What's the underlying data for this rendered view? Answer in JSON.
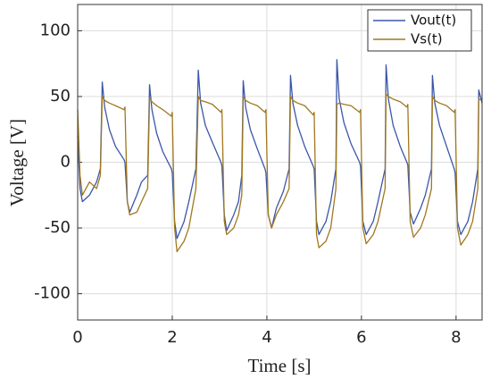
{
  "chart_data": {
    "type": "line",
    "xlabel": "Time [s]",
    "ylabel": "Voltage [V]",
    "x": [
      0,
      0.05,
      0.1,
      0.25,
      0.4,
      0.48,
      0.52,
      0.57,
      0.67,
      0.8,
      0.98,
      1.0,
      1.05,
      1.1,
      1.25,
      1.35,
      1.48,
      1.52,
      1.57,
      1.67,
      1.8,
      1.98,
      2.0,
      2.05,
      2.1,
      2.25,
      2.35,
      2.5,
      2.55,
      2.6,
      2.7,
      2.85,
      3.03,
      3.05,
      3.1,
      3.15,
      3.3,
      3.4,
      3.47,
      3.5,
      3.55,
      3.65,
      3.8,
      3.96,
      3.98,
      4.03,
      4.1,
      4.2,
      4.35,
      4.47,
      4.5,
      4.55,
      4.65,
      4.8,
      4.98,
      5.0,
      5.05,
      5.1,
      5.25,
      5.35,
      5.46,
      5.48,
      5.53,
      5.63,
      5.78,
      5.96,
      5.98,
      6.03,
      6.1,
      6.25,
      6.35,
      6.5,
      6.52,
      6.57,
      6.67,
      6.82,
      6.96,
      6.98,
      7.03,
      7.1,
      7.25,
      7.35,
      7.48,
      7.5,
      7.55,
      7.65,
      7.8,
      7.96,
      7.98,
      8.03,
      8.1,
      8.25,
      8.35,
      8.46,
      8.48,
      8.55
    ],
    "series": [
      {
        "name": "Vout(t)",
        "color": "#3a56a8",
        "values": [
          20,
          -20,
          -30,
          -25,
          -15,
          -5,
          61,
          42,
          25,
          12,
          2,
          0,
          -30,
          -38,
          -25,
          -15,
          -10,
          59,
          40,
          22,
          8,
          -5,
          -8,
          -45,
          -58,
          -45,
          -30,
          -5,
          70,
          45,
          28,
          15,
          0,
          -3,
          -40,
          -52,
          -40,
          -30,
          -10,
          62,
          42,
          25,
          10,
          -5,
          -8,
          -40,
          -50,
          -35,
          -22,
          -5,
          66,
          45,
          28,
          12,
          -3,
          -5,
          -45,
          -55,
          -45,
          -30,
          -5,
          78,
          48,
          30,
          14,
          0,
          -3,
          -45,
          -55,
          -45,
          -30,
          -5,
          74,
          48,
          28,
          12,
          0,
          -2,
          -38,
          -47,
          -35,
          -25,
          -5,
          66,
          45,
          28,
          12,
          -5,
          -8,
          -45,
          -55,
          -45,
          -30,
          -5,
          55,
          45
        ]
      },
      {
        "name": "Vs(t)",
        "color": "#a0781e",
        "values": [
          40,
          -10,
          -25,
          -15,
          -20,
          -10,
          50,
          47,
          45,
          43,
          40,
          42,
          -30,
          -40,
          -38,
          -30,
          -20,
          49,
          46,
          43,
          40,
          35,
          38,
          -50,
          -68,
          -60,
          -50,
          -20,
          50,
          47,
          46,
          44,
          38,
          40,
          -45,
          -55,
          -50,
          -40,
          -25,
          50,
          47,
          45,
          43,
          38,
          40,
          -40,
          -50,
          -40,
          -30,
          -20,
          50,
          47,
          45,
          43,
          36,
          38,
          -55,
          -65,
          -60,
          -50,
          -20,
          44,
          45,
          44,
          43,
          38,
          40,
          -50,
          -62,
          -55,
          -45,
          -20,
          52,
          50,
          48,
          46,
          42,
          44,
          -45,
          -57,
          -50,
          -40,
          -20,
          50,
          47,
          45,
          43,
          38,
          40,
          -50,
          -63,
          -55,
          -45,
          -20,
          48,
          47
        ]
      }
    ],
    "xlim": [
      0,
      8.55
    ],
    "ylim": [
      -120,
      120
    ],
    "xticks": [
      0,
      2,
      4,
      6,
      8
    ],
    "yticks": [
      -100,
      -50,
      0,
      50,
      100
    ],
    "grid": true,
    "legend": "upper right"
  }
}
